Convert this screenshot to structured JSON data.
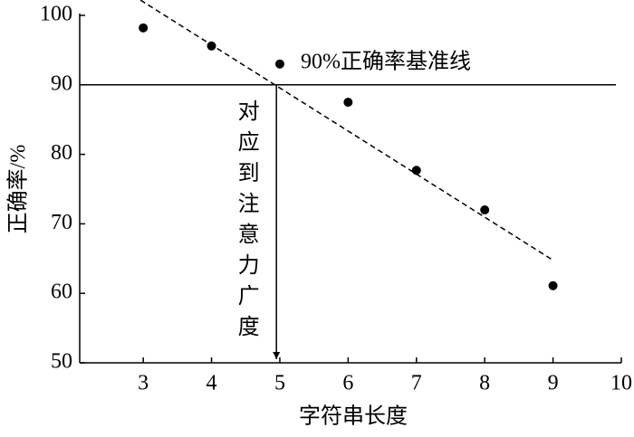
{
  "chart_data": {
    "type": "scatter",
    "x": [
      3,
      4,
      5,
      6,
      7,
      8,
      9
    ],
    "values": [
      98.2,
      95.6,
      93.0,
      87.5,
      77.7,
      72.0,
      61.1
    ],
    "color": "#000000",
    "xlim": [
      2.07,
      10
    ],
    "ylim": [
      50,
      100
    ],
    "xticks": [
      3,
      4,
      5,
      6,
      7,
      8,
      9,
      10
    ],
    "yticks": [
      50,
      60,
      70,
      80,
      90,
      100
    ],
    "xlabel": "字符串长度",
    "ylabel": "正确率/%",
    "trend_line": {
      "x": [
        2.96,
        9.01
      ],
      "y": [
        102.2,
        64.7
      ]
    },
    "reference_line": {
      "y": 90,
      "label": "90%正确率基准线"
    },
    "arrow": {
      "x": 4.95,
      "label": "对应到注意力广度"
    }
  }
}
